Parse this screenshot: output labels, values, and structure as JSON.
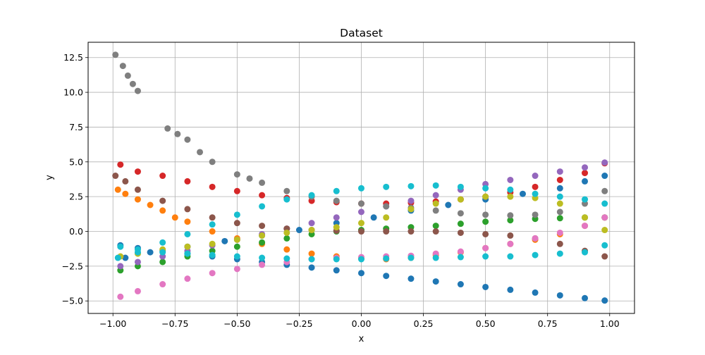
{
  "chart_data": {
    "type": "scatter",
    "title": "Dataset",
    "xlabel": "x",
    "ylabel": "y",
    "xlim": [
      -1.1,
      1.1
    ],
    "ylim": [
      -5.9,
      13.6
    ],
    "grid": true,
    "xticks": [
      -1.0,
      -0.75,
      -0.5,
      -0.25,
      0.0,
      0.25,
      0.5,
      0.75,
      1.0
    ],
    "xtick_labels": [
      "−1.00",
      "−0.75",
      "−0.50",
      "−0.25",
      "0.00",
      "0.25",
      "0.50",
      "0.75",
      "1.00"
    ],
    "yticks": [
      -5.0,
      -2.5,
      0.0,
      2.5,
      5.0,
      7.5,
      10.0,
      12.5
    ],
    "ytick_labels": [
      "−5.0",
      "−2.5",
      "0.0",
      "2.5",
      "5.0",
      "7.5",
      "10.0",
      "12.5"
    ],
    "series": [
      {
        "color": "#1f77b4",
        "x": [
          -0.97,
          -0.9,
          -0.8,
          -0.7,
          -0.6,
          -0.5,
          -0.4,
          -0.3,
          -0.2,
          -0.1,
          0.0,
          0.1,
          0.2,
          0.3,
          0.4,
          0.5,
          0.6,
          0.7,
          0.8,
          0.9,
          0.98,
          -0.95,
          -0.85,
          -0.7,
          -0.55,
          -0.4,
          -0.25,
          -0.1,
          0.05,
          0.2,
          0.35,
          0.5,
          0.65,
          0.8,
          0.9,
          0.98
        ],
        "y": [
          -1.0,
          -1.2,
          -1.4,
          -1.6,
          -1.8,
          -2.0,
          -2.2,
          -2.4,
          -2.6,
          -2.8,
          -3.0,
          -3.2,
          -3.4,
          -3.6,
          -3.8,
          -4.0,
          -4.2,
          -4.4,
          -4.6,
          -4.8,
          -4.97,
          -1.9,
          -1.5,
          -1.1,
          -0.7,
          -0.3,
          0.1,
          0.6,
          1.0,
          1.5,
          1.9,
          2.3,
          2.7,
          3.1,
          3.6,
          4.0
        ]
      },
      {
        "color": "#ff7f0e",
        "x": [
          -0.98,
          -0.95,
          -0.9,
          -0.85,
          -0.8,
          -0.75,
          -0.7,
          -0.6,
          -0.5,
          -0.4,
          -0.3,
          -0.2,
          -0.1,
          0.0,
          0.1,
          0.2,
          0.3,
          0.4,
          0.5,
          0.6,
          0.7,
          0.8,
          0.9,
          0.98
        ],
        "y": [
          3.0,
          2.7,
          2.3,
          1.9,
          1.5,
          1.0,
          0.7,
          0.0,
          -0.5,
          -0.9,
          -1.3,
          -1.6,
          -1.8,
          -1.95,
          -2.0,
          -1.9,
          -1.7,
          -1.5,
          -1.2,
          -0.9,
          -0.6,
          -0.2,
          0.4,
          1.0
        ]
      },
      {
        "color": "#2ca02c",
        "x": [
          -0.97,
          -0.9,
          -0.8,
          -0.7,
          -0.6,
          -0.5,
          -0.4,
          -0.3,
          -0.2,
          -0.1,
          0.0,
          0.1,
          0.2,
          0.3,
          0.4,
          0.5,
          0.6,
          0.7,
          0.8,
          0.9,
          0.98
        ],
        "y": [
          -2.8,
          -2.5,
          -2.2,
          -1.8,
          -1.4,
          -1.1,
          -0.8,
          -0.5,
          -0.2,
          0.0,
          0.1,
          0.2,
          0.3,
          0.4,
          0.55,
          0.7,
          0.8,
          0.9,
          0.95,
          1.0,
          1.0
        ]
      },
      {
        "color": "#d62728",
        "x": [
          -0.97,
          -0.9,
          -0.8,
          -0.7,
          -0.6,
          -0.5,
          -0.4,
          -0.3,
          -0.2,
          -0.1,
          0.0,
          0.1,
          0.2,
          0.3,
          0.4,
          0.5,
          0.6,
          0.7,
          0.8,
          0.9,
          0.98
        ],
        "y": [
          4.8,
          4.3,
          4.0,
          3.6,
          3.2,
          2.9,
          2.6,
          2.4,
          2.2,
          2.1,
          2.0,
          2.0,
          2.05,
          2.15,
          2.3,
          2.5,
          2.8,
          3.2,
          3.7,
          4.2,
          4.9
        ]
      },
      {
        "color": "#9467bd",
        "x": [
          -0.97,
          -0.9,
          -0.8,
          -0.7,
          -0.6,
          -0.5,
          -0.4,
          -0.3,
          -0.2,
          -0.1,
          0.0,
          0.1,
          0.2,
          0.3,
          0.4,
          0.5,
          0.6,
          0.7,
          0.8,
          0.9,
          0.98
        ],
        "y": [
          -2.5,
          -2.2,
          -1.8,
          -1.4,
          -1.0,
          -0.6,
          -0.2,
          0.2,
          0.6,
          1.0,
          1.4,
          1.8,
          2.2,
          2.6,
          3.0,
          3.4,
          3.7,
          4.0,
          4.3,
          4.6,
          4.95
        ]
      },
      {
        "color": "#8c564b",
        "x": [
          -0.99,
          -0.95,
          -0.9,
          -0.8,
          -0.7,
          -0.6,
          -0.5,
          -0.4,
          -0.3,
          -0.2,
          -0.1,
          0.0,
          0.1,
          0.2,
          0.3,
          0.4,
          0.5,
          0.6,
          0.7,
          0.8,
          0.9,
          0.98
        ],
        "y": [
          4.0,
          3.6,
          3.0,
          2.2,
          1.6,
          1.0,
          0.6,
          0.4,
          0.2,
          0.1,
          0.05,
          0.0,
          0.0,
          0.0,
          0.0,
          -0.1,
          -0.2,
          -0.3,
          -0.5,
          -0.9,
          -1.4,
          -1.8
        ]
      },
      {
        "color": "#e377c2",
        "x": [
          -0.97,
          -0.9,
          -0.8,
          -0.7,
          -0.6,
          -0.5,
          -0.4,
          -0.3,
          -0.2,
          -0.1,
          0.0,
          0.1,
          0.2,
          0.3,
          0.4,
          0.5,
          0.6,
          0.7,
          0.8,
          0.9,
          0.98
        ],
        "y": [
          -4.7,
          -4.3,
          -3.8,
          -3.4,
          -3.0,
          -2.7,
          -2.4,
          -2.2,
          -2.0,
          -1.9,
          -1.85,
          -1.8,
          -1.75,
          -1.6,
          -1.45,
          -1.2,
          -0.9,
          -0.5,
          -0.1,
          0.4,
          1.0
        ]
      },
      {
        "color": "#7f7f7f",
        "x": [
          -0.99,
          -0.96,
          -0.94,
          -0.92,
          -0.9,
          -0.78,
          -0.74,
          -0.7,
          -0.65,
          -0.6,
          -0.5,
          -0.45,
          -0.4,
          -0.3,
          -0.2,
          -0.1,
          0.0,
          0.1,
          0.2,
          0.3,
          0.4,
          0.5,
          0.6,
          0.7,
          0.8,
          0.9,
          0.98
        ],
        "y": [
          12.7,
          11.9,
          11.2,
          10.6,
          10.1,
          7.4,
          7.0,
          6.6,
          5.7,
          5.0,
          4.1,
          3.8,
          3.5,
          2.9,
          2.5,
          2.2,
          2.0,
          1.8,
          1.7,
          1.5,
          1.3,
          1.2,
          1.15,
          1.2,
          1.4,
          2.0,
          2.9
        ]
      },
      {
        "color": "#bcbd22",
        "x": [
          -0.97,
          -0.9,
          -0.8,
          -0.7,
          -0.6,
          -0.5,
          -0.4,
          -0.3,
          -0.2,
          -0.1,
          0.0,
          0.1,
          0.2,
          0.3,
          0.4,
          0.5,
          0.6,
          0.7,
          0.8,
          0.9,
          0.98
        ],
        "y": [
          -1.8,
          -1.6,
          -1.3,
          -1.1,
          -0.9,
          -0.6,
          -0.3,
          -0.1,
          0.1,
          0.3,
          0.6,
          1.0,
          1.6,
          2.0,
          2.3,
          2.5,
          2.5,
          2.4,
          2.0,
          1.0,
          0.1
        ]
      },
      {
        "color": "#17becf",
        "x": [
          -0.98,
          -0.9,
          -0.8,
          -0.7,
          -0.6,
          -0.5,
          -0.4,
          -0.3,
          -0.2,
          -0.1,
          0.0,
          0.1,
          0.2,
          0.3,
          0.4,
          0.5,
          0.6,
          0.7,
          0.8,
          0.9,
          0.98,
          -0.97,
          -0.9,
          -0.8,
          -0.7,
          -0.6,
          -0.5,
          -0.4,
          -0.3,
          -0.2,
          -0.1,
          0.0,
          0.1,
          0.2,
          0.3,
          0.4,
          0.5,
          0.6,
          0.7,
          0.8,
          0.9,
          0.98
        ],
        "y": [
          -1.9,
          -1.5,
          -0.8,
          -0.2,
          0.5,
          1.2,
          1.8,
          2.3,
          2.6,
          2.9,
          3.1,
          3.2,
          3.25,
          3.3,
          3.2,
          3.1,
          3.0,
          2.7,
          2.5,
          2.3,
          2.0,
          -1.1,
          -1.3,
          -1.5,
          -1.6,
          -1.7,
          -1.8,
          -1.9,
          -1.95,
          -2.0,
          -2.0,
          -2.0,
          -1.95,
          -1.9,
          -1.9,
          -1.85,
          -1.8,
          -1.8,
          -1.7,
          -1.6,
          -1.5,
          -1.0
        ]
      }
    ]
  }
}
